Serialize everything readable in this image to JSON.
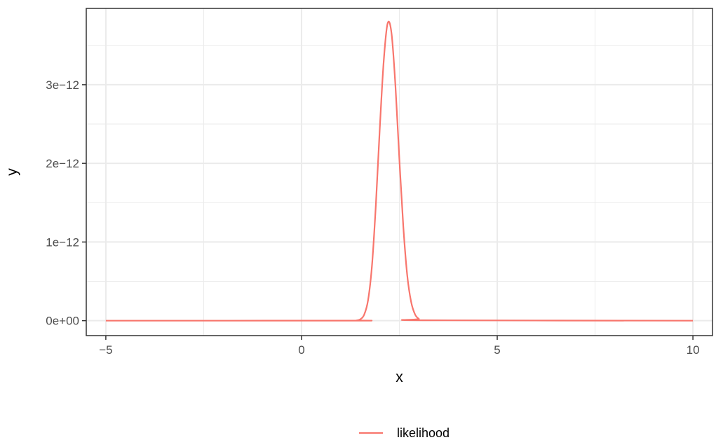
{
  "chart_data": {
    "type": "line",
    "xlabel": "x",
    "ylabel": "y",
    "xlim": [
      -5.5,
      10.5
    ],
    "ylim": [
      -1.9e-13,
      3.97e-12
    ],
    "x_ticks": [
      -5,
      0,
      5,
      10
    ],
    "x_tick_labels": [
      "−5",
      "0",
      "5",
      "10"
    ],
    "x_minor_ticks": [
      -2.5,
      2.5,
      7.5
    ],
    "y_ticks": [
      0,
      1e-12,
      2e-12,
      3e-12
    ],
    "y_tick_labels": [
      "0e+00",
      "1e−12",
      "2e−12",
      "3e−12"
    ],
    "y_minor_ticks": [
      5e-13,
      1.5e-12,
      2.5e-12,
      3.5e-12
    ],
    "grid": true,
    "legend_position": "bottom",
    "series": [
      {
        "name": "likelihood",
        "color": "#F8766D",
        "x": [
          -5,
          1.3,
          1.4,
          1.5,
          1.6,
          1.7,
          1.8,
          1.9,
          2.0,
          2.1,
          2.2,
          2.3,
          2.4,
          2.5,
          2.6,
          2.7,
          2.8,
          2.9,
          3.0,
          3.1,
          10
        ],
        "y": [
          0,
          4e-16,
          3e-15,
          1.7e-14,
          7.5e-14,
          2.6e-13,
          7e-13,
          1.48e-12,
          2.45e-12,
          3.3e-12,
          3.78e-12,
          3.65e-12,
          2.98e-12,
          2.05e-12,
          1.2e-12,
          5.8e-13,
          2.4e-13,
          8e-14,
          2.2e-14,
          5e-15,
          0
        ]
      }
    ]
  }
}
